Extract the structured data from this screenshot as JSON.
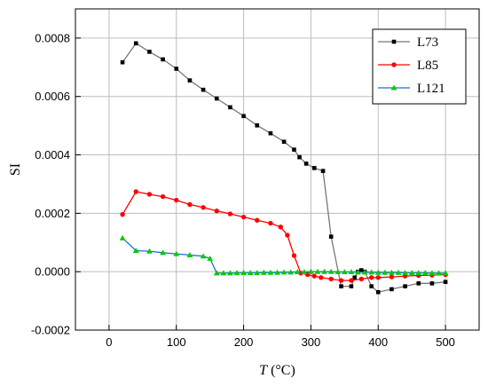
{
  "chart_data": {
    "type": "line",
    "xlabel": {
      "italic": "T",
      "rest": " (°C)"
    },
    "ylabel": "SI",
    "xlim": [
      -50,
      550
    ],
    "ylim": [
      -0.0002,
      0.0009
    ],
    "x_ticks": [
      0,
      100,
      200,
      300,
      400,
      500
    ],
    "y_ticks": [
      -0.0002,
      0.0,
      0.0002,
      0.0004,
      0.0006,
      0.0008
    ],
    "y_tick_labels": [
      "-0.0002",
      "0.0000",
      "0.0002",
      "0.0004",
      "0.0006",
      "0.0008"
    ],
    "grid": true,
    "legend_position": "top-right",
    "series": [
      {
        "name": "L73",
        "color": "#000000",
        "line_color": "#777777",
        "marker": "square",
        "x": [
          20,
          40,
          60,
          80,
          100,
          120,
          140,
          160,
          180,
          200,
          220,
          240,
          260,
          275,
          283,
          293,
          305,
          318,
          330,
          345,
          360,
          365,
          370,
          375,
          380,
          390,
          400,
          420,
          440,
          460,
          480,
          500
        ],
        "y": [
          0.000717,
          0.000782,
          0.000753,
          0.000727,
          0.000695,
          0.000655,
          0.000623,
          0.000593,
          0.000563,
          0.000533,
          0.000501,
          0.000474,
          0.000445,
          0.000418,
          0.000392,
          0.00037,
          0.000355,
          0.000345,
          0.00012,
          -5e-05,
          -5e-05,
          -2e-05,
          0.0,
          5e-06,
          0.0,
          -5e-05,
          -7e-05,
          -6e-05,
          -5e-05,
          -4e-05,
          -4e-05,
          -3.5e-05
        ]
      },
      {
        "name": "L85",
        "color": "#ff0000",
        "line_color": "#ff0000",
        "marker": "circle",
        "x": [
          20,
          40,
          60,
          80,
          100,
          120,
          140,
          160,
          180,
          200,
          220,
          240,
          255,
          265,
          275,
          285,
          295,
          305,
          315,
          330,
          345,
          360,
          375,
          390,
          400,
          420,
          440,
          460,
          480,
          500
        ],
        "y": [
          0.000196,
          0.000274,
          0.000265,
          0.000257,
          0.000245,
          0.00023,
          0.00022,
          0.000208,
          0.000198,
          0.000187,
          0.000176,
          0.000166,
          0.000153,
          0.000125,
          5.5e-05,
          -5e-06,
          -1e-05,
          -1.5e-05,
          -2e-05,
          -2.5e-05,
          -3e-05,
          -3e-05,
          -2.5e-05,
          -2e-05,
          -2e-05,
          -1.8e-05,
          -1.5e-05,
          -1.3e-05,
          -1.2e-05,
          -1e-05
        ]
      },
      {
        "name": "L121",
        "color": "#00cc00",
        "line_color": "#1f6fd1",
        "marker": "triangle",
        "x": [
          20,
          40,
          60,
          80,
          100,
          120,
          140,
          150,
          160,
          170,
          180,
          190,
          200,
          210,
          220,
          230,
          240,
          250,
          260,
          270,
          280,
          290,
          300,
          310,
          320,
          330,
          340,
          350,
          360,
          370,
          380,
          390,
          400,
          410,
          420,
          430,
          440,
          450,
          460,
          470,
          480,
          490,
          500
        ],
        "y": [
          0.000115,
          7.2e-05,
          7e-05,
          6.5e-05,
          6.1e-05,
          5.7e-05,
          5.3e-05,
          4.5e-05,
          -5e-06,
          -5e-06,
          -5e-06,
          -4e-06,
          -4e-06,
          -4e-06,
          -4e-06,
          -3e-06,
          -3e-06,
          -3e-06,
          -2e-06,
          -2e-06,
          -1e-06,
          -1e-06,
          0.0,
          0.0,
          0.0,
          0.0,
          -1e-06,
          -1e-06,
          -1e-06,
          -2e-06,
          -2e-06,
          -2e-06,
          -3e-06,
          -3e-06,
          -3e-06,
          -3e-06,
          -4e-06,
          -4e-06,
          -4e-06,
          -4e-06,
          -5e-06,
          -5e-06,
          -5e-06
        ]
      }
    ]
  }
}
